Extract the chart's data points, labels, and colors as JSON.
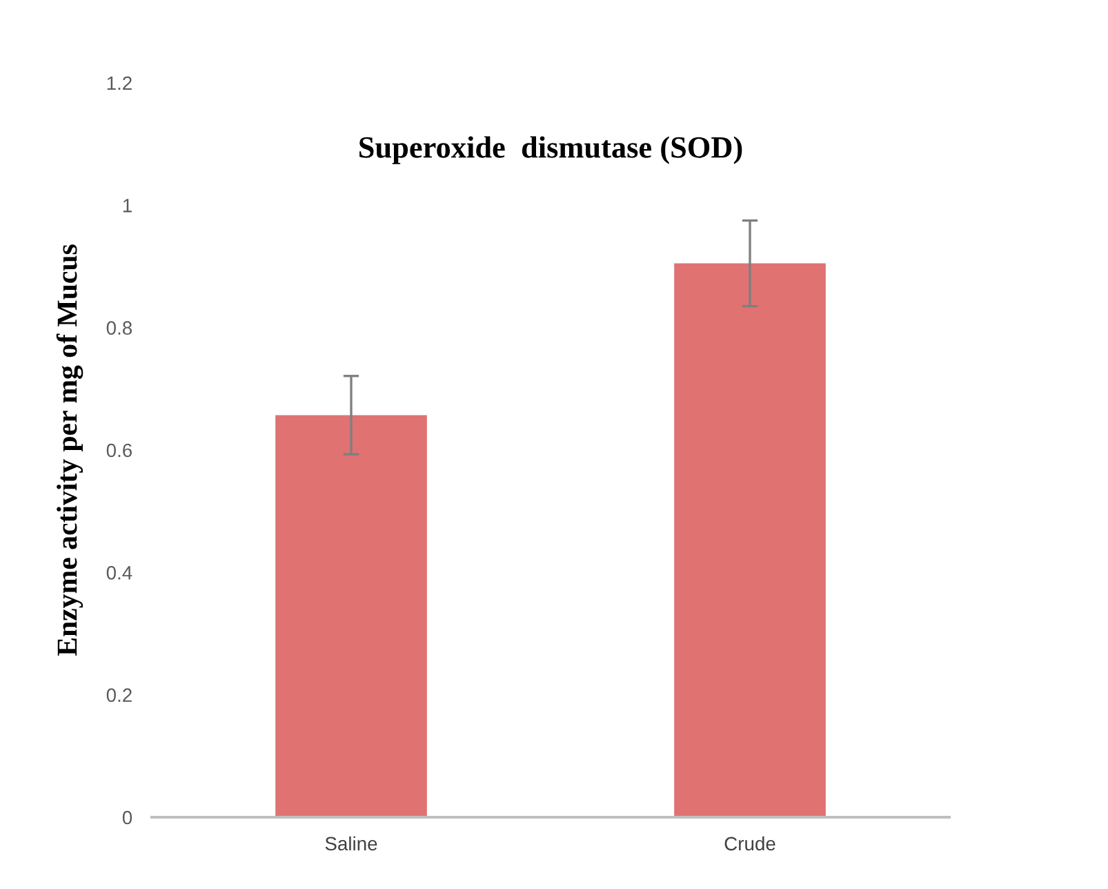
{
  "chart_data": {
    "type": "bar",
    "title": "Superoxide  dismutase (SOD)",
    "ylabel": "Enzyme activity per mg of Mucus",
    "categories": [
      "Saline",
      "Crude"
    ],
    "values": [
      0.657,
      0.905
    ],
    "errors": [
      0.064,
      0.07
    ],
    "color": "#e07272",
    "ylim": [
      0,
      1.2
    ],
    "yticks": [
      0,
      0.2,
      0.4,
      0.6,
      0.8,
      1,
      1.2
    ],
    "grid": false
  }
}
